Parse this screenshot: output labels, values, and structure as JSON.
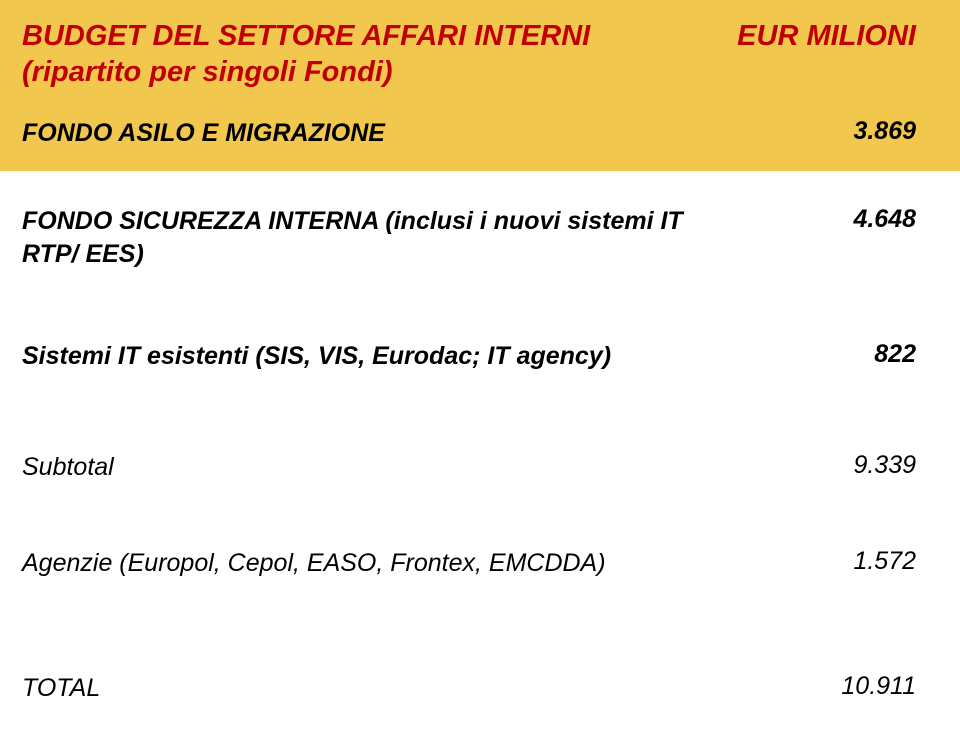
{
  "colors": {
    "header_bg": "#f2c74e",
    "header_text": "#c00000",
    "body_text": "#000000",
    "page_bg": "#ffffff"
  },
  "header": {
    "title_line1": "BUDGET DEL SETTORE AFFARI INTERNI",
    "title_line2": "(ripartito per singoli Fondi)",
    "unit": "EUR MILIONI"
  },
  "rows": {
    "asilo": {
      "label": "FONDO ASILO E MIGRAZIONE",
      "value": "3.869"
    },
    "sicurezza": {
      "label_line1": "FONDO SICUREZZA INTERNA (inclusi  i nuovi sistemi IT",
      "label_line2": "RTP/ EES)",
      "value": "4.648"
    },
    "sistemi_it": {
      "label": "Sistemi IT esistenti (SIS, VIS, Eurodac; IT agency)",
      "value": "822"
    },
    "subtotal": {
      "label": "Subtotal",
      "value": "9.339"
    },
    "agenzie": {
      "label": "Agenzie (Europol, Cepol, EASO, Frontex, EMCDDA)",
      "value": "1.572"
    },
    "total": {
      "label": "TOTAL",
      "value": "10.911"
    }
  }
}
